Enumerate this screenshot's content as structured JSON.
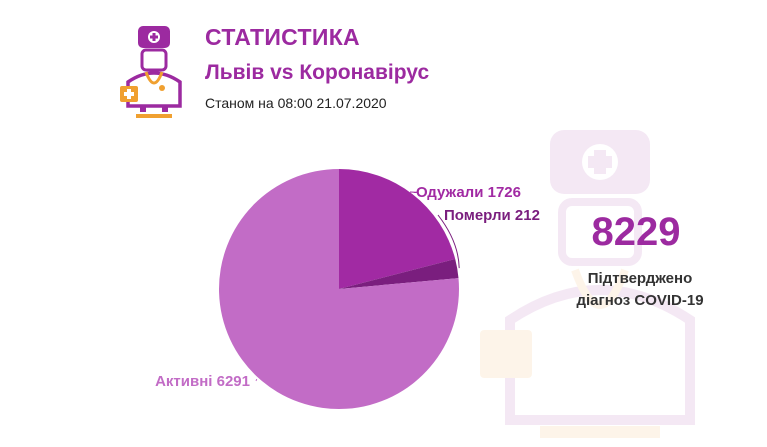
{
  "header": {
    "title": "СТАТИСТИКА",
    "subtitle": "Львів vs Коронавірус",
    "date": "Станом на 08:00 21.07.2020"
  },
  "icons": {
    "logo": "doctor-with-medical-case-icon",
    "watermark": "doctor-watermark-icon"
  },
  "colors": {
    "brand": "#9c2aa0",
    "active": "#c26cc6",
    "recovered": "#a12aa3",
    "deaths": "#7a1e7e",
    "accent_orange": "#f0a030"
  },
  "chart_data": {
    "type": "pie",
    "slices": [
      {
        "label": "Одужали",
        "value": 1726,
        "color": "#a12aa3"
      },
      {
        "label": "Померли",
        "value": 212,
        "color": "#7a1e7e"
      },
      {
        "label": "Активні",
        "value": 6291,
        "color": "#c26cc6"
      }
    ],
    "slice_labels": [
      "Одужали 1726",
      "Померли 212",
      "Активні 6291"
    ]
  },
  "total": {
    "value": "8229",
    "caption_line1": "Підтверджено",
    "caption_line2": "діагноз COVID-19"
  }
}
